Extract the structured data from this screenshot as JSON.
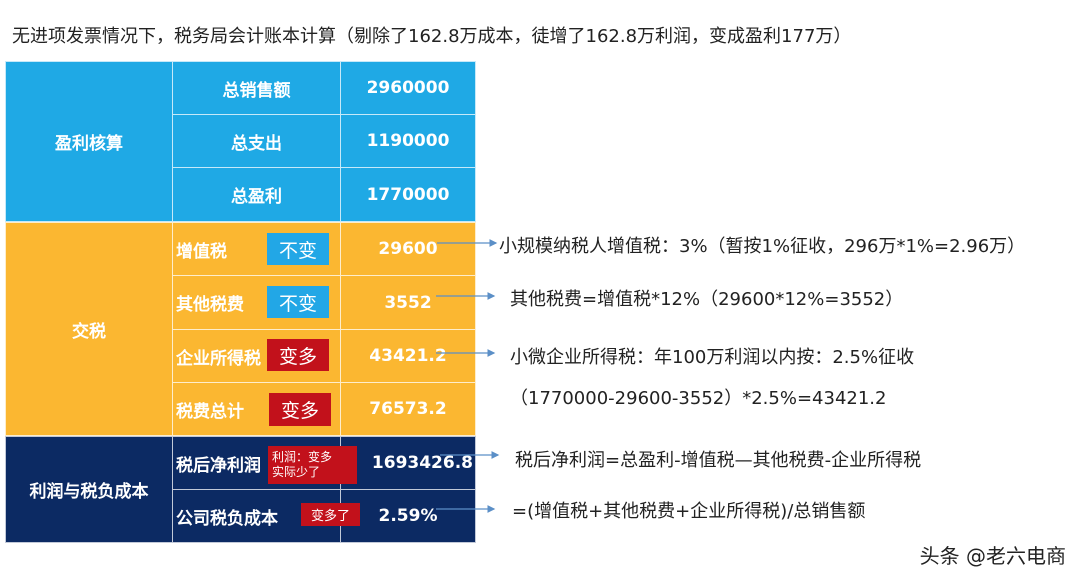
{
  "title": "无进项发票情况下，税务局会计账本计算（剔除了162.8万成本，徒增了162.8万利润，变成盈利177万）",
  "sections": {
    "profit": {
      "label": "盈利核算",
      "rows": [
        {
          "label": "总销售额",
          "value": "2960000"
        },
        {
          "label": "总支出",
          "value": "1190000"
        },
        {
          "label": "总盈利",
          "value": "1770000"
        }
      ]
    },
    "tax": {
      "label": "交税",
      "rows": [
        {
          "label": "增值税",
          "tag": "不变",
          "value": "29600"
        },
        {
          "label": "其他税费",
          "tag": "不变",
          "value": "3552"
        },
        {
          "label": "企业所得税",
          "tag": "变多",
          "value": "43421.2"
        },
        {
          "label": "税费总计",
          "tag": "变多",
          "value": "76573.2"
        }
      ]
    },
    "cost": {
      "label": "利润与税负成本",
      "rows": [
        {
          "label": "税后净利润",
          "tag_line1": "利润：变多",
          "tag_line2": "实际少了",
          "value": "1693426.8"
        },
        {
          "label": "公司税负成本",
          "tag": "变多了",
          "value": "2.59%"
        }
      ]
    }
  },
  "notes": [
    "小规模纳税人增值税：3%（暂按1%征收，296万*1%=2.96万）",
    "其他税费=增值税*12%（29600*12%=3552）",
    "小微企业所得税：年100万利润以内按：2.5%征收",
    "（1770000-29600-3552）*2.5%=43421.2",
    "税后净利润=总盈利-增值税—其他税费-企业所得税",
    "=(增值税+其他税费+企业所得税)/总销售额"
  ],
  "watermark": "头条 @老六电商",
  "colors": {
    "blue": "#1fa9e5",
    "orange": "#fbb731",
    "navy": "#0c2a63",
    "red": "#c2111b",
    "arrow": "#5b8fc7"
  }
}
